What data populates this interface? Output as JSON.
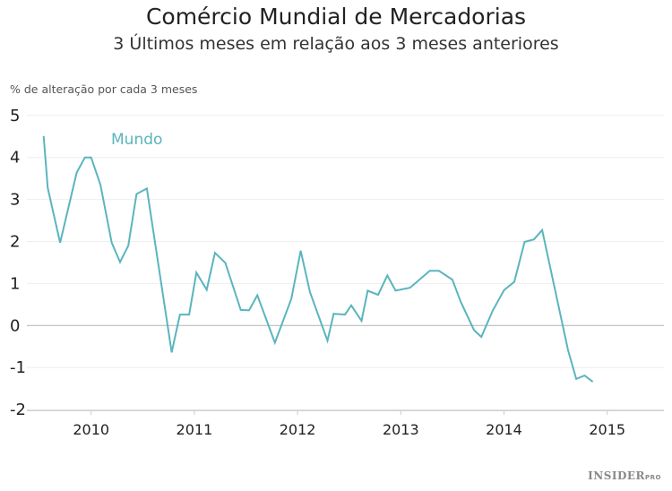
{
  "chart_data": {
    "type": "line",
    "title": "Comércio Mundial de Mercadorias",
    "subtitle": "3 Últimos meses em relação aos 3 meses anteriores",
    "ylabel": "% de alteração por cada 3 meses",
    "xlabel": "",
    "ylim": [
      -2,
      5
    ],
    "xlim": [
      2009.45,
      2015.55
    ],
    "yticks": [
      "5",
      "4",
      "3",
      "2",
      "1",
      "0",
      "-1",
      "-2"
    ],
    "xticks": [
      "2010",
      "2011",
      "2012",
      "2013",
      "2014",
      "2015"
    ],
    "grid": true,
    "series": [
      {
        "name": "Mundo",
        "color": "#5ab5bd",
        "points": [
          [
            2009.54,
            4.51
          ],
          [
            2009.58,
            3.27
          ],
          [
            2009.7,
            1.97
          ],
          [
            2009.86,
            3.64
          ],
          [
            2009.94,
            4.0
          ],
          [
            2010.0,
            4.0
          ],
          [
            2010.09,
            3.35
          ],
          [
            2010.2,
            1.97
          ],
          [
            2010.28,
            1.51
          ],
          [
            2010.36,
            1.9
          ],
          [
            2010.44,
            3.13
          ],
          [
            2010.54,
            3.26
          ],
          [
            2010.78,
            -0.64
          ],
          [
            2010.86,
            0.26
          ],
          [
            2010.95,
            0.26
          ],
          [
            2011.02,
            1.26
          ],
          [
            2011.12,
            0.85
          ],
          [
            2011.2,
            1.73
          ],
          [
            2011.3,
            1.49
          ],
          [
            2011.45,
            0.37
          ],
          [
            2011.53,
            0.36
          ],
          [
            2011.61,
            0.72
          ],
          [
            2011.78,
            -0.41
          ],
          [
            2011.94,
            0.64
          ],
          [
            2012.03,
            1.78
          ],
          [
            2012.12,
            0.8
          ],
          [
            2012.29,
            -0.36
          ],
          [
            2012.35,
            0.28
          ],
          [
            2012.46,
            0.26
          ],
          [
            2012.52,
            0.48
          ],
          [
            2012.62,
            0.11
          ],
          [
            2012.68,
            0.83
          ],
          [
            2012.78,
            0.73
          ],
          [
            2012.87,
            1.19
          ],
          [
            2012.95,
            0.83
          ],
          [
            2013.09,
            0.9
          ],
          [
            2013.28,
            1.3
          ],
          [
            2013.37,
            1.3
          ],
          [
            2013.5,
            1.09
          ],
          [
            2013.58,
            0.57
          ],
          [
            2013.71,
            -0.11
          ],
          [
            2013.78,
            -0.27
          ],
          [
            2013.89,
            0.35
          ],
          [
            2014.0,
            0.84
          ],
          [
            2014.1,
            1.04
          ],
          [
            2014.2,
            1.99
          ],
          [
            2014.29,
            2.05
          ],
          [
            2014.37,
            2.27
          ],
          [
            2014.62,
            -0.58
          ],
          [
            2014.7,
            -1.27
          ],
          [
            2014.78,
            -1.19
          ],
          [
            2014.86,
            -1.34
          ]
        ]
      }
    ]
  },
  "branding": {
    "name": "INSIDER",
    "suffix": "PRO"
  }
}
